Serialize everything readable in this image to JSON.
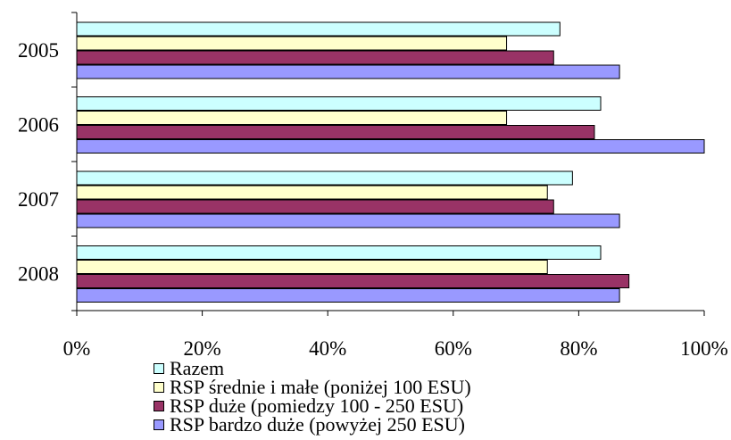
{
  "chart_data": {
    "type": "bar",
    "orientation": "horizontal",
    "categories": [
      "2005",
      "2006",
      "2007",
      "2008"
    ],
    "series": [
      {
        "name": "Razem",
        "color": "#CCFFFF",
        "values": [
          77,
          83.5,
          79,
          83.5
        ]
      },
      {
        "name": "RSP średnie i małe (poniżej 100 ESU)",
        "color": "#FFFFCC",
        "values": [
          68.5,
          68.5,
          75,
          75
        ]
      },
      {
        "name": "RSP duże (pomiedzy 100 - 250 ESU)",
        "color": "#993366",
        "values": [
          76,
          82.5,
          76,
          88
        ]
      },
      {
        "name": "RSP bardzo duże (powyżej 250 ESU)",
        "color": "#9999FF",
        "values": [
          86.5,
          100,
          86.5,
          86.5
        ]
      }
    ],
    "xlim": [
      0,
      100
    ],
    "xticks": [
      "0%",
      "20%",
      "40%",
      "60%",
      "80%",
      "100%"
    ],
    "grid": false,
    "legend_position": "bottom"
  }
}
